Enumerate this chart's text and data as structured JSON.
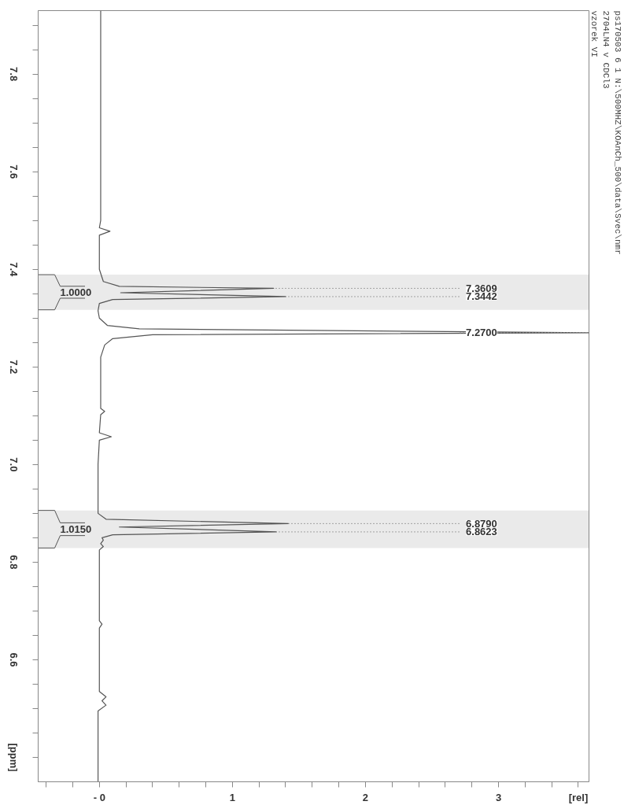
{
  "chart_data": {
    "type": "line",
    "title": "ps170503  6  1  N:\\500MHZ\\KOAnCh_500\\data\\Svec\\nmr",
    "subtitle": "2704LN4 v CDCl3",
    "annotations": [
      "vzorek VI",
      {
        "text": "7.3609",
        "x": 1.31,
        "y": 7.361
      },
      {
        "text": "7.3442",
        "x": 1.4,
        "y": 7.344
      },
      {
        "text": "7.2700",
        "x": 3.68,
        "y": 7.27
      },
      {
        "text": "6.8790",
        "x": 1.42,
        "y": 6.879
      },
      {
        "text": "6.8623",
        "x": 1.33,
        "y": 6.862
      }
    ],
    "bands": [
      {
        "axis": "y",
        "from": 7.317,
        "to": 7.389,
        "label": "1.0000",
        "color": "#555555"
      },
      {
        "axis": "y",
        "from": 6.829,
        "to": 6.906,
        "label": "1.0150",
        "color": "#555555"
      }
    ],
    "series": [
      {
        "color": "#555555",
        "x": [
          0.01,
          0.01,
          0.01,
          0.0,
          0.08,
          0.0,
          0.0,
          0.03,
          0.15,
          1.31,
          0.16,
          1.4,
          0.1,
          0.0,
          -0.01,
          0.0,
          0.06,
          0.3,
          3.68,
          0.4,
          0.1,
          0.04,
          0.01,
          0.01,
          0.01,
          0.04,
          0.01,
          0.0,
          0.09,
          0.0,
          -0.01,
          -0.01,
          0.05,
          1.42,
          0.15,
          1.33,
          0.1,
          0.02,
          0.03,
          0.01,
          0.03,
          0.0,
          0.0,
          0.0,
          0.02,
          0.0,
          0.0,
          0.05,
          0.02,
          0.05,
          -0.01,
          -0.01
        ],
        "values": [
          7.93,
          7.7,
          7.5,
          7.485,
          7.478,
          7.47,
          7.4,
          7.375,
          7.365,
          7.361,
          7.352,
          7.344,
          7.338,
          7.33,
          7.315,
          7.3,
          7.285,
          7.278,
          7.27,
          7.266,
          7.258,
          7.245,
          7.22,
          7.15,
          7.115,
          7.109,
          7.102,
          7.065,
          7.057,
          7.05,
          7.0,
          6.9,
          6.888,
          6.879,
          6.872,
          6.862,
          6.856,
          6.85,
          6.845,
          6.838,
          6.832,
          6.825,
          6.75,
          6.68,
          6.673,
          6.665,
          6.535,
          6.524,
          6.516,
          6.507,
          6.495,
          6.35
        ]
      }
    ],
    "xlim": [
      -0.46,
      3.68
    ],
    "ylim": [
      6.35,
      7.93
    ],
    "xticks": [
      {
        "value": -0.4,
        "label": null
      },
      {
        "value": -0.2,
        "label": null
      },
      {
        "value": 0,
        "label": "- 0"
      },
      {
        "value": 0.2,
        "label": null
      },
      {
        "value": 0.4,
        "label": null
      },
      {
        "value": 0.6,
        "label": null
      },
      {
        "value": 0.8,
        "label": null
      },
      1,
      {
        "value": 1.2,
        "label": null
      },
      {
        "value": 1.4,
        "label": null
      },
      {
        "value": 1.6,
        "label": null
      },
      {
        "value": 1.8,
        "label": null
      },
      2,
      {
        "value": 2.2,
        "label": null
      },
      {
        "value": 2.4,
        "label": null
      },
      {
        "value": 2.6,
        "label": null
      },
      {
        "value": 2.8,
        "label": null
      },
      3,
      {
        "value": 3.2,
        "label": null
      },
      {
        "value": 3.4,
        "label": null
      },
      {
        "value": 3.6,
        "label": "[rel]"
      }
    ],
    "yticks": [
      {
        "value": 6.4,
        "label": "[ppm]"
      },
      {
        "value": 6.45,
        "label": null
      },
      {
        "value": 6.5,
        "label": null
      },
      {
        "value": 6.55,
        "label": null
      },
      6.6,
      {
        "value": 6.65,
        "label": null
      },
      {
        "value": 6.7,
        "label": null
      },
      {
        "value": 6.75,
        "label": null
      },
      6.8,
      {
        "value": 6.85,
        "label": null
      },
      {
        "value": 6.9,
        "label": null
      },
      {
        "value": 6.95,
        "label": null
      },
      {
        "value": 7.0,
        "label": "7.0"
      },
      {
        "value": 7.05,
        "label": null
      },
      {
        "value": 7.1,
        "label": null
      },
      {
        "value": 7.15,
        "label": null
      },
      7.2,
      {
        "value": 7.25,
        "label": null
      },
      {
        "value": 7.3,
        "label": null
      },
      {
        "value": 7.35,
        "label": null
      },
      7.4,
      {
        "value": 7.45,
        "label": null
      },
      {
        "value": 7.5,
        "label": null
      },
      {
        "value": 7.55,
        "label": null
      },
      7.6,
      {
        "value": 7.65,
        "label": null
      },
      {
        "value": 7.7,
        "label": null
      },
      {
        "value": 7.75,
        "label": null
      },
      7.8,
      {
        "value": 7.85,
        "label": null
      },
      {
        "value": 7.9,
        "label": null
      }
    ],
    "grid": false,
    "marker": "none",
    "line_style": "solid"
  }
}
